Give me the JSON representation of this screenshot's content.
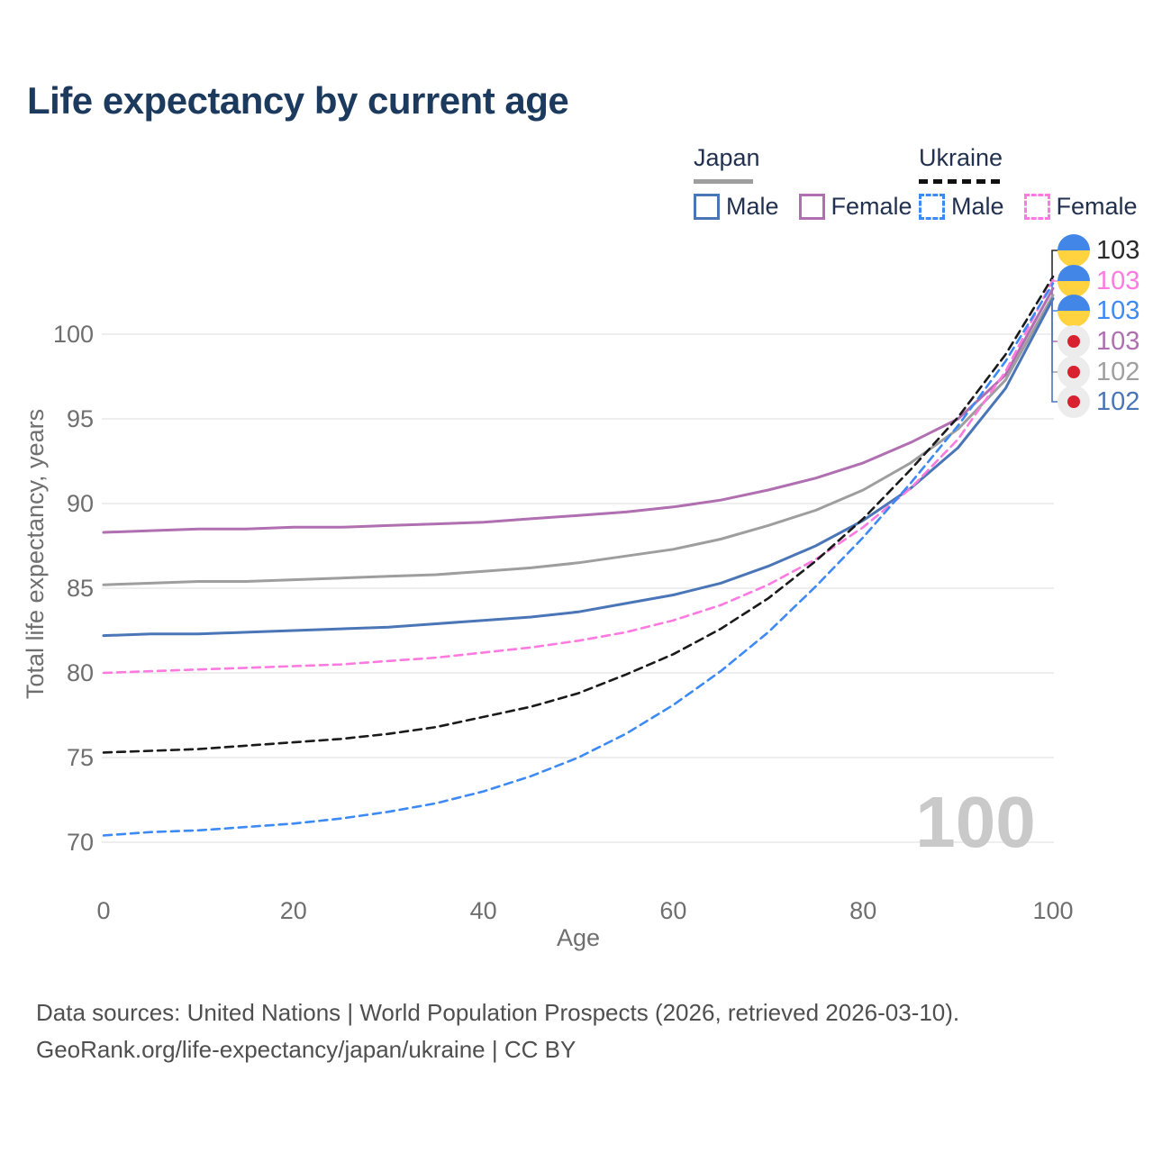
{
  "title": {
    "text": "Life expectancy by current age",
    "color": "#1c3a5e"
  },
  "legend": {
    "groups": [
      {
        "name": "Japan",
        "line_style": "solid",
        "underline_color": "#9e9e9e",
        "items": [
          {
            "label": "Male",
            "color": "#4a76b8"
          },
          {
            "label": "Female",
            "color": "#b06fb0"
          }
        ]
      },
      {
        "name": "Ukraine",
        "line_style": "dashed",
        "underline_color": "#111111",
        "items": [
          {
            "label": "Male",
            "color": "#3d8af5"
          },
          {
            "label": "Female",
            "color": "#ff7ae0"
          }
        ]
      }
    ]
  },
  "chart_data": {
    "type": "line",
    "xlabel": "Age",
    "ylabel": "Total life expectancy, years",
    "xlim": [
      0,
      100
    ],
    "ylim": [
      68,
      104
    ],
    "xticks": [
      0,
      20,
      40,
      60,
      80,
      100
    ],
    "yticks": [
      70,
      75,
      80,
      85,
      90,
      95,
      100
    ],
    "grid": "horizontal-only",
    "legend_position": "top-right",
    "watermark": "100",
    "x": [
      0,
      5,
      10,
      15,
      20,
      25,
      30,
      35,
      40,
      45,
      50,
      55,
      60,
      65,
      70,
      75,
      80,
      85,
      90,
      95,
      100
    ],
    "series": [
      {
        "name": "Japan Female",
        "country": "Japan",
        "sex": "Female",
        "style": "solid",
        "color": "#b06fb0",
        "values": [
          88.3,
          88.4,
          88.5,
          88.5,
          88.6,
          88.6,
          88.7,
          88.8,
          88.9,
          89.1,
          89.3,
          89.5,
          89.8,
          90.2,
          90.8,
          91.5,
          92.4,
          93.6,
          95.0,
          97.6,
          102.7
        ]
      },
      {
        "name": "Japan",
        "country": "Japan",
        "sex": "Both",
        "style": "solid",
        "color": "#9e9e9e",
        "values": [
          85.2,
          85.3,
          85.4,
          85.4,
          85.5,
          85.6,
          85.7,
          85.8,
          86.0,
          86.2,
          86.5,
          86.9,
          87.3,
          87.9,
          88.7,
          89.6,
          90.8,
          92.4,
          94.4,
          97.3,
          102.3
        ]
      },
      {
        "name": "Japan Male",
        "country": "Japan",
        "sex": "Male",
        "style": "solid",
        "color": "#4a76b8",
        "values": [
          82.2,
          82.3,
          82.3,
          82.4,
          82.5,
          82.6,
          82.7,
          82.9,
          83.1,
          83.3,
          83.6,
          84.1,
          84.6,
          85.3,
          86.3,
          87.5,
          89.0,
          90.9,
          93.3,
          96.8,
          102.1
        ]
      },
      {
        "name": "Ukraine Female",
        "country": "Ukraine",
        "sex": "Female",
        "style": "dashed",
        "color": "#ff7ae0",
        "values": [
          80.0,
          80.1,
          80.2,
          80.3,
          80.4,
          80.5,
          80.7,
          80.9,
          81.2,
          81.5,
          81.9,
          82.4,
          83.1,
          84.0,
          85.2,
          86.7,
          88.6,
          90.9,
          93.8,
          97.8,
          103.2
        ]
      },
      {
        "name": "Ukraine",
        "country": "Ukraine",
        "sex": "Both",
        "style": "dashed",
        "color": "#1a1a1a",
        "values": [
          75.3,
          75.4,
          75.5,
          75.7,
          75.9,
          76.1,
          76.4,
          76.8,
          77.4,
          78.0,
          78.8,
          79.9,
          81.1,
          82.6,
          84.4,
          86.6,
          89.1,
          92.0,
          95.1,
          98.8,
          103.4
        ]
      },
      {
        "name": "Ukraine Male",
        "country": "Ukraine",
        "sex": "Male",
        "style": "dashed",
        "color": "#3d8af5",
        "values": [
          70.4,
          70.6,
          70.7,
          70.9,
          71.1,
          71.4,
          71.8,
          72.3,
          73.0,
          73.9,
          75.0,
          76.4,
          78.1,
          80.1,
          82.4,
          85.1,
          88.0,
          91.2,
          94.6,
          98.4,
          103.0
        ]
      }
    ],
    "end_labels": [
      {
        "value": "103",
        "flag": "ukraine",
        "series": "Ukraine",
        "color": "#2b2b2b"
      },
      {
        "value": "103",
        "flag": "ukraine",
        "series": "Ukraine Female",
        "color": "#ff7ae0"
      },
      {
        "value": "103",
        "flag": "ukraine",
        "series": "Ukraine Male",
        "color": "#3d8af5"
      },
      {
        "value": "103",
        "flag": "japan",
        "series": "Japan Female",
        "color": "#b06fb0"
      },
      {
        "value": "102",
        "flag": "japan",
        "series": "Japan",
        "color": "#a0a0a0"
      },
      {
        "value": "102",
        "flag": "japan",
        "series": "Japan Male",
        "color": "#4a76b8"
      }
    ]
  },
  "footer": {
    "line1": "Data sources: United Nations | World Population Prospects (2026, retrieved 2026-03-10).",
    "line2": "GeoRank.org/life-expectancy/japan/ukraine | CC BY"
  }
}
